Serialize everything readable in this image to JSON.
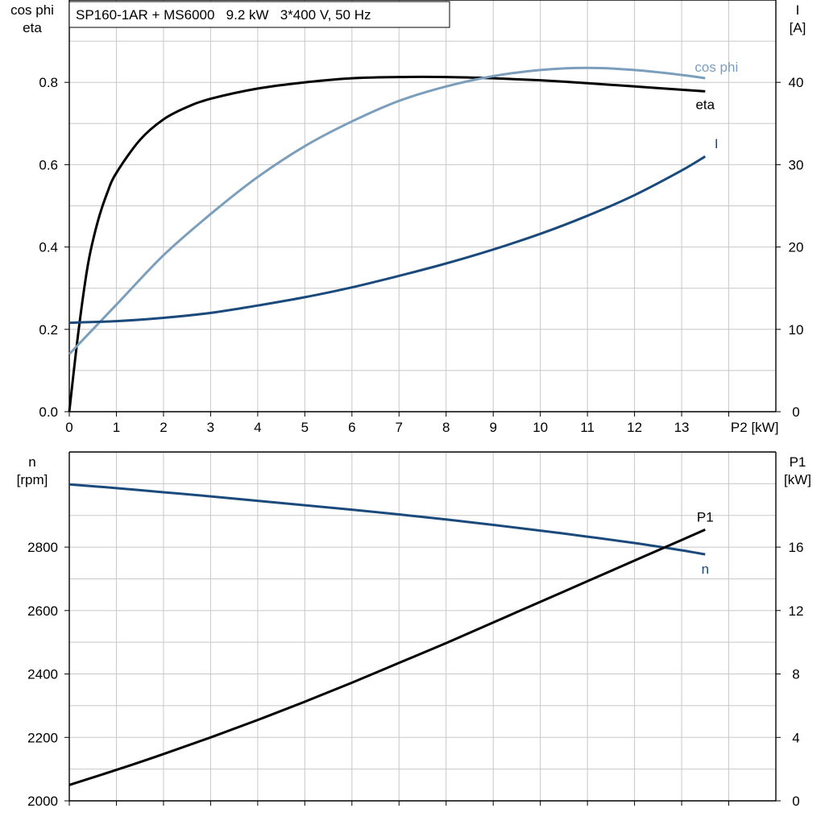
{
  "title": "SP160-1AR + MS6000   9.2 kW   3*400 V, 50 Hz",
  "colors": {
    "black": "#000000",
    "dark_blue": "#1a4a7c",
    "light_blue": "#7b9ebd",
    "grid": "#c8c8c8"
  },
  "chart_data": [
    {
      "type": "line",
      "xlabel": "P2 [kW]",
      "xlim": [
        0,
        15
      ],
      "x_ticks": [
        "0",
        "1",
        "2",
        "3",
        "4",
        "5",
        "6",
        "7",
        "8",
        "9",
        "10",
        "11",
        "12",
        "13"
      ],
      "y_left_label_line1": "cos phi",
      "y_left_label_line2": "eta",
      "ylim_left": [
        0,
        1.0
      ],
      "y_left_ticks": [
        "0.0",
        "0.2",
        "0.4",
        "0.6",
        "0.8"
      ],
      "y_right_label_line1": "I",
      "y_right_label_line2": "[A]",
      "ylim_right": [
        0,
        50
      ],
      "y_right_ticks": [
        "0",
        "10",
        "20",
        "30",
        "40"
      ],
      "grid": true,
      "series": [
        {
          "name": "eta",
          "axis": "left",
          "color": "#000000",
          "x": [
            0,
            0.2,
            0.4,
            0.6,
            0.8,
            1.0,
            1.5,
            2.0,
            2.5,
            3.0,
            4.0,
            5.0,
            6.0,
            7.0,
            8.0,
            9.0,
            10.0,
            11.0,
            12.0,
            13.0,
            13.5
          ],
          "y": [
            0.0,
            0.2,
            0.36,
            0.46,
            0.53,
            0.58,
            0.66,
            0.71,
            0.74,
            0.76,
            0.785,
            0.8,
            0.81,
            0.813,
            0.813,
            0.81,
            0.805,
            0.798,
            0.79,
            0.782,
            0.778
          ]
        },
        {
          "name": "cos phi",
          "axis": "left",
          "color": "#7b9ebd",
          "x": [
            0,
            1,
            2,
            3,
            4,
            5,
            6,
            7,
            8,
            9,
            10,
            11,
            12,
            13,
            13.5
          ],
          "y": [
            0.14,
            0.26,
            0.38,
            0.48,
            0.57,
            0.645,
            0.705,
            0.755,
            0.79,
            0.815,
            0.83,
            0.835,
            0.83,
            0.818,
            0.81
          ]
        },
        {
          "name": "I",
          "axis": "right",
          "color": "#1a4a7c",
          "x": [
            0,
            1,
            2,
            3,
            4,
            5,
            6,
            7,
            8,
            9,
            10,
            11,
            12,
            13,
            13.5
          ],
          "y": [
            10.8,
            11.0,
            11.4,
            12.0,
            12.9,
            13.9,
            15.1,
            16.5,
            18.0,
            19.7,
            21.6,
            23.8,
            26.3,
            29.3,
            31.0
          ]
        }
      ]
    },
    {
      "type": "line",
      "xlim": [
        0,
        15
      ],
      "y_left_label_line1": "n",
      "y_left_label_line2": "[rpm]",
      "ylim_left": [
        2000,
        3100
      ],
      "y_left_ticks": [
        "2000",
        "2200",
        "2400",
        "2600",
        "2800"
      ],
      "y_right_label_line1": "P1",
      "y_right_label_line2": "[kW]",
      "ylim_right": [
        0,
        22
      ],
      "y_right_ticks": [
        "0",
        "4",
        "8",
        "12",
        "16"
      ],
      "grid": true,
      "series": [
        {
          "name": "n",
          "axis": "left",
          "color": "#1a4a7c",
          "x": [
            0,
            1,
            2,
            3,
            4,
            5,
            6,
            7,
            8,
            9,
            10,
            11,
            12,
            13,
            13.5
          ],
          "y": [
            2998,
            2986,
            2973,
            2960,
            2946,
            2932,
            2918,
            2903,
            2887,
            2870,
            2852,
            2833,
            2813,
            2790,
            2777
          ]
        },
        {
          "name": "P1",
          "axis": "right",
          "color": "#000000",
          "x": [
            0,
            1,
            2,
            3,
            4,
            5,
            6,
            7,
            8,
            9,
            10,
            11,
            12,
            13,
            13.5
          ],
          "y": [
            1.0,
            1.95,
            2.95,
            4.0,
            5.1,
            6.25,
            7.45,
            8.7,
            9.95,
            11.25,
            12.55,
            13.85,
            15.15,
            16.45,
            17.1
          ]
        }
      ]
    }
  ]
}
